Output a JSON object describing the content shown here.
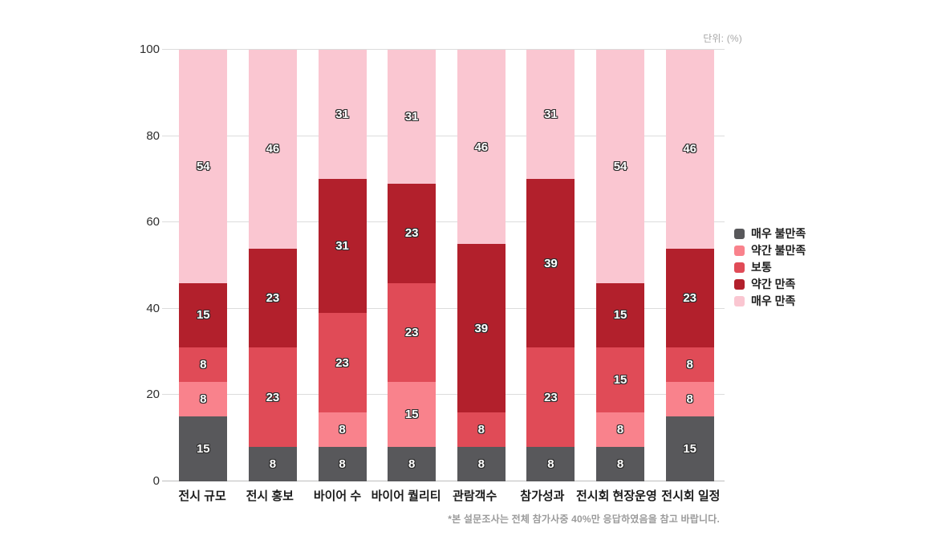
{
  "chart_data": {
    "type": "bar",
    "variant": "stacked-vertical",
    "unit_label": "단위: (%)",
    "categories": [
      "전시 규모",
      "전시 홍보",
      "바이어 수",
      "바이어 퀄리티",
      "관람객수",
      "참가성과",
      "전시회 현장운영",
      "전시회 일정"
    ],
    "series": [
      {
        "name": "매우 불만족",
        "color": "#58585B",
        "values": [
          15,
          8,
          8,
          8,
          8,
          8,
          8,
          15
        ]
      },
      {
        "name": "약간 불만족",
        "color": "#F9828C",
        "values": [
          8,
          0,
          8,
          15,
          0,
          0,
          8,
          8
        ]
      },
      {
        "name": "보통",
        "color": "#E04B57",
        "values": [
          8,
          23,
          23,
          23,
          8,
          23,
          15,
          8
        ]
      },
      {
        "name": "약간 만족",
        "color": "#B2202C",
        "values": [
          15,
          23,
          31,
          23,
          39,
          39,
          15,
          23
        ]
      },
      {
        "name": "매우 만족",
        "color": "#FAC6D1",
        "values": [
          54,
          46,
          31,
          31,
          46,
          31,
          54,
          46
        ]
      }
    ],
    "ylim": [
      0,
      100
    ],
    "yticks": [
      0,
      20,
      40,
      60,
      80,
      100
    ],
    "grid": "horizontal",
    "legend_position": "right",
    "footnote": "*본 설문조사는 전체 참가사중 40%만 응답하였음을 참고 바랍니다."
  }
}
